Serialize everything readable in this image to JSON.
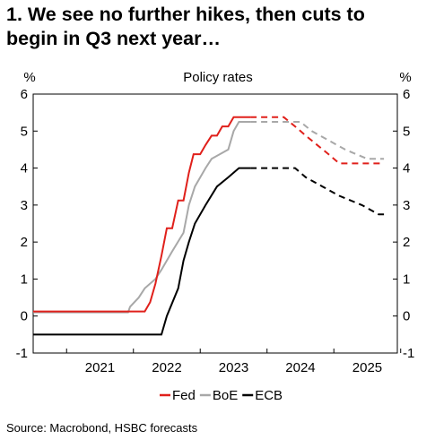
{
  "title_lines": [
    "1. We see no further hikes, then cuts to",
    "begin in Q3 next year…"
  ],
  "source": "Source: Macrobond, HSBC forecasts",
  "chart_data": {
    "type": "line",
    "title": "Policy rates",
    "ylabel_left": "%",
    "ylabel_right": "%",
    "ylim": [
      -1,
      6
    ],
    "yticks": [
      -1,
      0,
      1,
      2,
      3,
      4,
      5,
      6
    ],
    "xlim": [
      2020.5,
      2025.95
    ],
    "xtick_labels": [
      "2021",
      "2022",
      "2023",
      "2024",
      "2025"
    ],
    "grid": false,
    "legend_position": "bottom-center",
    "series": [
      {
        "name": "Fed",
        "color": "#e0201b",
        "actual": [
          [
            2020.5,
            0.125
          ],
          [
            2022.17,
            0.125
          ],
          [
            2022.25,
            0.375
          ],
          [
            2022.33,
            0.875
          ],
          [
            2022.42,
            1.625
          ],
          [
            2022.5,
            2.375
          ],
          [
            2022.58,
            2.375
          ],
          [
            2022.67,
            3.125
          ],
          [
            2022.75,
            3.125
          ],
          [
            2022.83,
            3.875
          ],
          [
            2022.9,
            4.375
          ],
          [
            2023.0,
            4.375
          ],
          [
            2023.08,
            4.625
          ],
          [
            2023.17,
            4.875
          ],
          [
            2023.25,
            4.875
          ],
          [
            2023.33,
            5.125
          ],
          [
            2023.42,
            5.125
          ],
          [
            2023.5,
            5.375
          ],
          [
            2023.75,
            5.375
          ]
        ],
        "forecast": [
          [
            2023.75,
            5.375
          ],
          [
            2024.25,
            5.375
          ],
          [
            2024.42,
            5.125
          ],
          [
            2024.58,
            4.875
          ],
          [
            2024.75,
            4.625
          ],
          [
            2024.92,
            4.375
          ],
          [
            2025.08,
            4.125
          ],
          [
            2025.75,
            4.125
          ]
        ]
      },
      {
        "name": "BoE",
        "color": "#a8a8a8",
        "actual": [
          [
            2020.5,
            0.1
          ],
          [
            2021.92,
            0.1
          ],
          [
            2021.95,
            0.25
          ],
          [
            2022.08,
            0.5
          ],
          [
            2022.17,
            0.75
          ],
          [
            2022.33,
            1.0
          ],
          [
            2022.42,
            1.25
          ],
          [
            2022.58,
            1.75
          ],
          [
            2022.75,
            2.25
          ],
          [
            2022.83,
            3.0
          ],
          [
            2022.92,
            3.5
          ],
          [
            2023.08,
            4.0
          ],
          [
            2023.17,
            4.25
          ],
          [
            2023.42,
            4.5
          ],
          [
            2023.5,
            5.0
          ],
          [
            2023.58,
            5.25
          ],
          [
            2023.75,
            5.25
          ]
        ],
        "forecast": [
          [
            2023.75,
            5.25
          ],
          [
            2024.5,
            5.25
          ],
          [
            2024.67,
            5.0
          ],
          [
            2024.92,
            4.75
          ],
          [
            2025.17,
            4.5
          ],
          [
            2025.5,
            4.25
          ],
          [
            2025.75,
            4.25
          ]
        ]
      },
      {
        "name": "ECB",
        "color": "#000000",
        "actual": [
          [
            2020.5,
            -0.5
          ],
          [
            2022.42,
            -0.5
          ],
          [
            2022.5,
            0.0
          ],
          [
            2022.67,
            0.75
          ],
          [
            2022.75,
            1.5
          ],
          [
            2022.83,
            2.0
          ],
          [
            2022.92,
            2.5
          ],
          [
            2023.08,
            3.0
          ],
          [
            2023.25,
            3.5
          ],
          [
            2023.42,
            3.75
          ],
          [
            2023.58,
            4.0
          ],
          [
            2023.75,
            4.0
          ]
        ],
        "forecast": [
          [
            2023.75,
            4.0
          ],
          [
            2024.42,
            4.0
          ],
          [
            2024.58,
            3.75
          ],
          [
            2024.83,
            3.5
          ],
          [
            2025.08,
            3.25
          ],
          [
            2025.42,
            3.0
          ],
          [
            2025.67,
            2.75
          ],
          [
            2025.75,
            2.75
          ]
        ]
      }
    ]
  }
}
